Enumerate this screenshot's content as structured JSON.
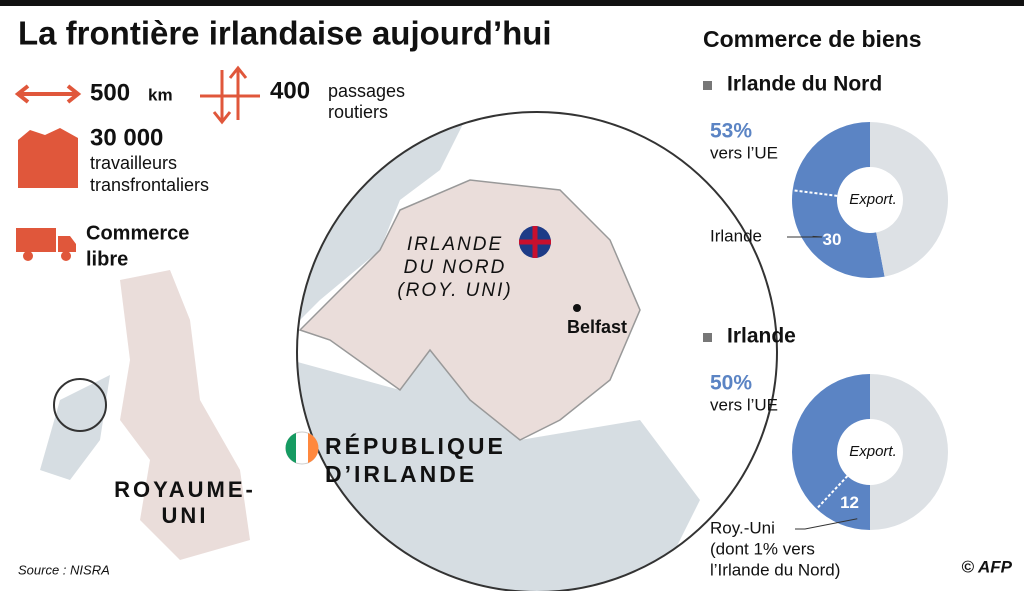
{
  "header": {
    "title": "La frontière irlandaise aujourd’hui"
  },
  "stats": [
    {
      "number": "500",
      "unit": "km"
    },
    {
      "number": "400",
      "lines": [
        "passages",
        "routiers"
      ]
    },
    {
      "number": "30 000",
      "lines": [
        "travailleurs",
        "transfrontaliers"
      ]
    },
    {
      "lines": [
        "Commerce",
        "libre"
      ]
    }
  ],
  "map": {
    "northern_ireland": [
      "IRLANDE",
      "DU NORD",
      "(ROY. UNI)"
    ],
    "city": "Belfast",
    "republic": [
      "RÉPUBLIQUE",
      "D’IRLANDE"
    ],
    "uk": [
      "ROYAUME-",
      "UNI"
    ]
  },
  "trade_title": "Commerce de biens",
  "chart_data": [
    {
      "type": "donut",
      "title": "Irlande du Nord",
      "center_label": "Export.",
      "segments": [
        {
          "value": 53,
          "value_label": "53%",
          "name": "vers l’UE",
          "color": "#5b84c4"
        },
        {
          "value": 47,
          "color": "#dde1e5"
        }
      ],
      "inner": {
        "value": 30,
        "lines": [
          "Irlande"
        ]
      }
    },
    {
      "type": "donut",
      "title": "Irlande",
      "center_label": "Export.",
      "segments": [
        {
          "value": 50,
          "value_label": "50%",
          "name": "vers l’UE",
          "color": "#5b84c4"
        },
        {
          "value": 50,
          "color": "#dde1e5"
        }
      ],
      "inner": {
        "value": 12,
        "lines": [
          "Roy.-Uni",
          "(dont 1% vers",
          "l’Irlande du Nord)"
        ]
      }
    }
  ],
  "footer": {
    "source": "Source : NISRA",
    "credit": "© AFP"
  }
}
